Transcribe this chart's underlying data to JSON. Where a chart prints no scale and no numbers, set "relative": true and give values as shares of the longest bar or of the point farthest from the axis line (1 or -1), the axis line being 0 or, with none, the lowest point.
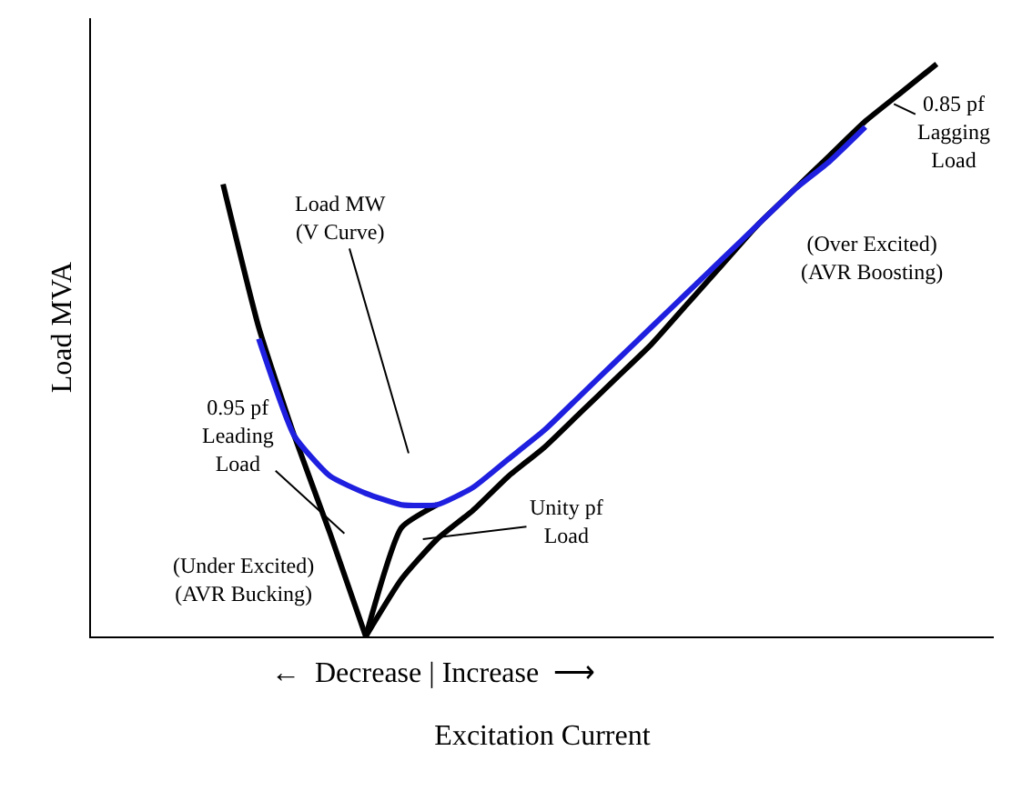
{
  "chart_data": {
    "type": "line",
    "relative": true,
    "xlabel": "Excitation Current",
    "ylabel": "Load MVA",
    "tick_labels": false,
    "marker": "none",
    "line_style": "solid",
    "categories": [
      null,
      null,
      null,
      null,
      null,
      null,
      null,
      null,
      null,
      null,
      null,
      null,
      null,
      null,
      null,
      null,
      null,
      null,
      null,
      null,
      null
    ],
    "series": [
      {
        "color": "#000000",
        "values": [
          0.79,
          0.54,
          0.35,
          0.18,
          0,
          null,
          null,
          null,
          null,
          null,
          null,
          null,
          null,
          null,
          null,
          null,
          null,
          null,
          null,
          null,
          null
        ]
      },
      {
        "color": "#000000",
        "values": [
          null,
          null,
          null,
          null,
          0,
          0.1,
          0.17,
          0.22,
          0.28,
          0.33,
          0.39,
          0.45,
          0.51,
          0.58,
          0.65,
          0.72,
          0.78,
          0.84,
          0.9,
          0.95,
          1
        ]
      },
      {
        "color": "#000000",
        "values": [
          null,
          null,
          null,
          null,
          0,
          0.19,
          0.23,
          null,
          null,
          null,
          null,
          null,
          null,
          null,
          null,
          null,
          null,
          null,
          null,
          null,
          null
        ]
      },
      {
        "color": "#1f1fe0",
        "values": [
          null,
          0.52,
          0.35,
          0.28,
          0.25,
          0.23,
          0.23,
          0.26,
          0.31,
          0.36,
          0.42,
          0.48,
          0.54,
          0.6,
          0.66,
          0.72,
          0.78,
          0.83,
          0.89,
          null,
          null
        ]
      }
    ],
    "annotations": [
      "Load MW\n(V Curve)",
      "0.95 pf\nLeading\nLoad",
      "(Under Excited)\n(AVR Bucking)",
      "Unity pf\nLoad",
      "0.85 pf\nLagging\nLoad",
      "(Over Excited)\n(AVR Boosting)",
      "←  Decrease | Increase  ⟶"
    ]
  }
}
